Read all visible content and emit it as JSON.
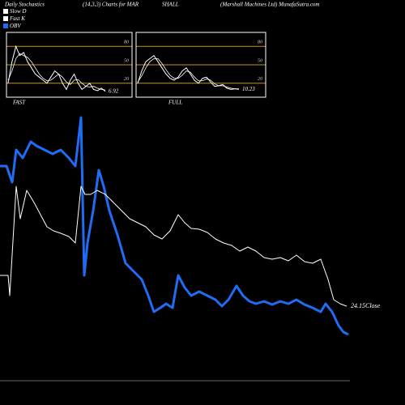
{
  "chart_data": [
    {
      "type": "line",
      "title": "FAST",
      "ylim": [
        0,
        100
      ],
      "yticks": [
        20,
        50,
        80
      ],
      "grid_color": "#c8902a",
      "series": [
        {
          "name": "Fast K",
          "color": "#ffffff",
          "values": [
            20,
            55,
            80,
            65,
            70,
            55,
            45,
            35,
            30,
            25,
            20,
            30,
            40,
            35,
            20,
            10,
            25,
            35,
            20,
            10,
            15,
            20,
            10,
            8,
            12,
            6.92
          ]
        },
        {
          "name": "Slow D",
          "color": "#ffffff",
          "values": [
            25,
            40,
            60,
            68,
            65,
            62,
            55,
            45,
            35,
            28,
            24,
            25,
            30,
            35,
            30,
            22,
            18,
            25,
            26,
            20,
            15,
            14,
            15,
            12,
            10,
            9
          ]
        }
      ]
    },
    {
      "type": "line",
      "title": "FULL",
      "ylim": [
        0,
        100
      ],
      "yticks": [
        20,
        50,
        80
      ],
      "grid_color": "#c8902a",
      "series": [
        {
          "color": "#ffffff",
          "values": [
            20,
            40,
            55,
            60,
            65,
            55,
            45,
            35,
            28,
            25,
            30,
            40,
            45,
            35,
            25,
            20,
            28,
            30,
            22,
            15,
            16,
            18,
            12,
            10,
            11,
            10.23
          ]
        },
        {
          "color": "#ffffff",
          "values": [
            22,
            32,
            45,
            55,
            60,
            60,
            52,
            42,
            33,
            28,
            28,
            33,
            40,
            38,
            30,
            24,
            24,
            27,
            25,
            19,
            16,
            16,
            14,
            12,
            11,
            11
          ]
        }
      ]
    },
    {
      "type": "line",
      "title": "Daily Stochastics",
      "subtitle": [
        "(14,3,3) Charts for MAR",
        "SHALL",
        "(Marshall Machines Ltd) MunafaSutra.com"
      ],
      "xlim": [
        0,
        430
      ],
      "ylim": [
        19.05,
        37.05
      ],
      "y2lim": [
        0,
        360
      ],
      "series": [
        {
          "name": "OBV",
          "color": "#1f6cf5",
          "axis": "y2",
          "x": [
            0,
            8,
            15,
            20,
            28,
            38,
            45,
            55,
            65,
            75,
            85,
            93,
            100,
            104,
            108,
            115,
            122,
            128,
            135,
            145,
            155,
            165,
            175,
            183,
            190,
            198,
            205,
            213,
            220,
            228,
            236,
            246,
            256,
            266,
            274,
            282,
            292,
            300,
            308,
            316,
            326,
            336,
            346,
            356,
            366,
            376,
            386,
            396,
            402,
            410,
            418,
            424,
            430
          ],
          "values": [
            275,
            275,
            255,
            295,
            285,
            305,
            300,
            295,
            290,
            295,
            285,
            275,
            335,
            140,
            180,
            220,
            270,
            250,
            220,
            190,
            155,
            145,
            135,
            115,
            95,
            100,
            105,
            100,
            140,
            125,
            115,
            120,
            115,
            110,
            102,
            110,
            127,
            115,
            108,
            105,
            108,
            104,
            108,
            105,
            110,
            104,
            100,
            95,
            105,
            95,
            78,
            70,
            67
          ]
        },
        {
          "name": "Close",
          "color": "#ffffff",
          "x": [
            0,
            10,
            12,
            20,
            25,
            33,
            42,
            50,
            58,
            66,
            75,
            85,
            93,
            100,
            105,
            112,
            120,
            130,
            140,
            150,
            160,
            170,
            180,
            190,
            200,
            210,
            220,
            228,
            236,
            246,
            256,
            266,
            276,
            286,
            296,
            306,
            316,
            326,
            336,
            346,
            356,
            366,
            376,
            386,
            396,
            405,
            412,
            420,
            428
          ],
          "values": [
            26.05,
            26.05,
            24.8,
            31.55,
            29.55,
            31.3,
            30.55,
            29.8,
            29.05,
            28.8,
            28.65,
            28.45,
            28.05,
            31.55,
            31.05,
            31.05,
            31.3,
            31.05,
            30.55,
            30.05,
            29.55,
            29.3,
            29.05,
            28.55,
            28.3,
            28.8,
            29.8,
            29.3,
            28.95,
            28.9,
            28.7,
            28.3,
            28.05,
            27.9,
            27.55,
            27.8,
            27.55,
            27.15,
            27.05,
            27.15,
            26.95,
            27.3,
            26.9,
            26.8,
            27.05,
            25.8,
            24.55,
            24.3,
            24.15
          ]
        }
      ]
    }
  ]
}
